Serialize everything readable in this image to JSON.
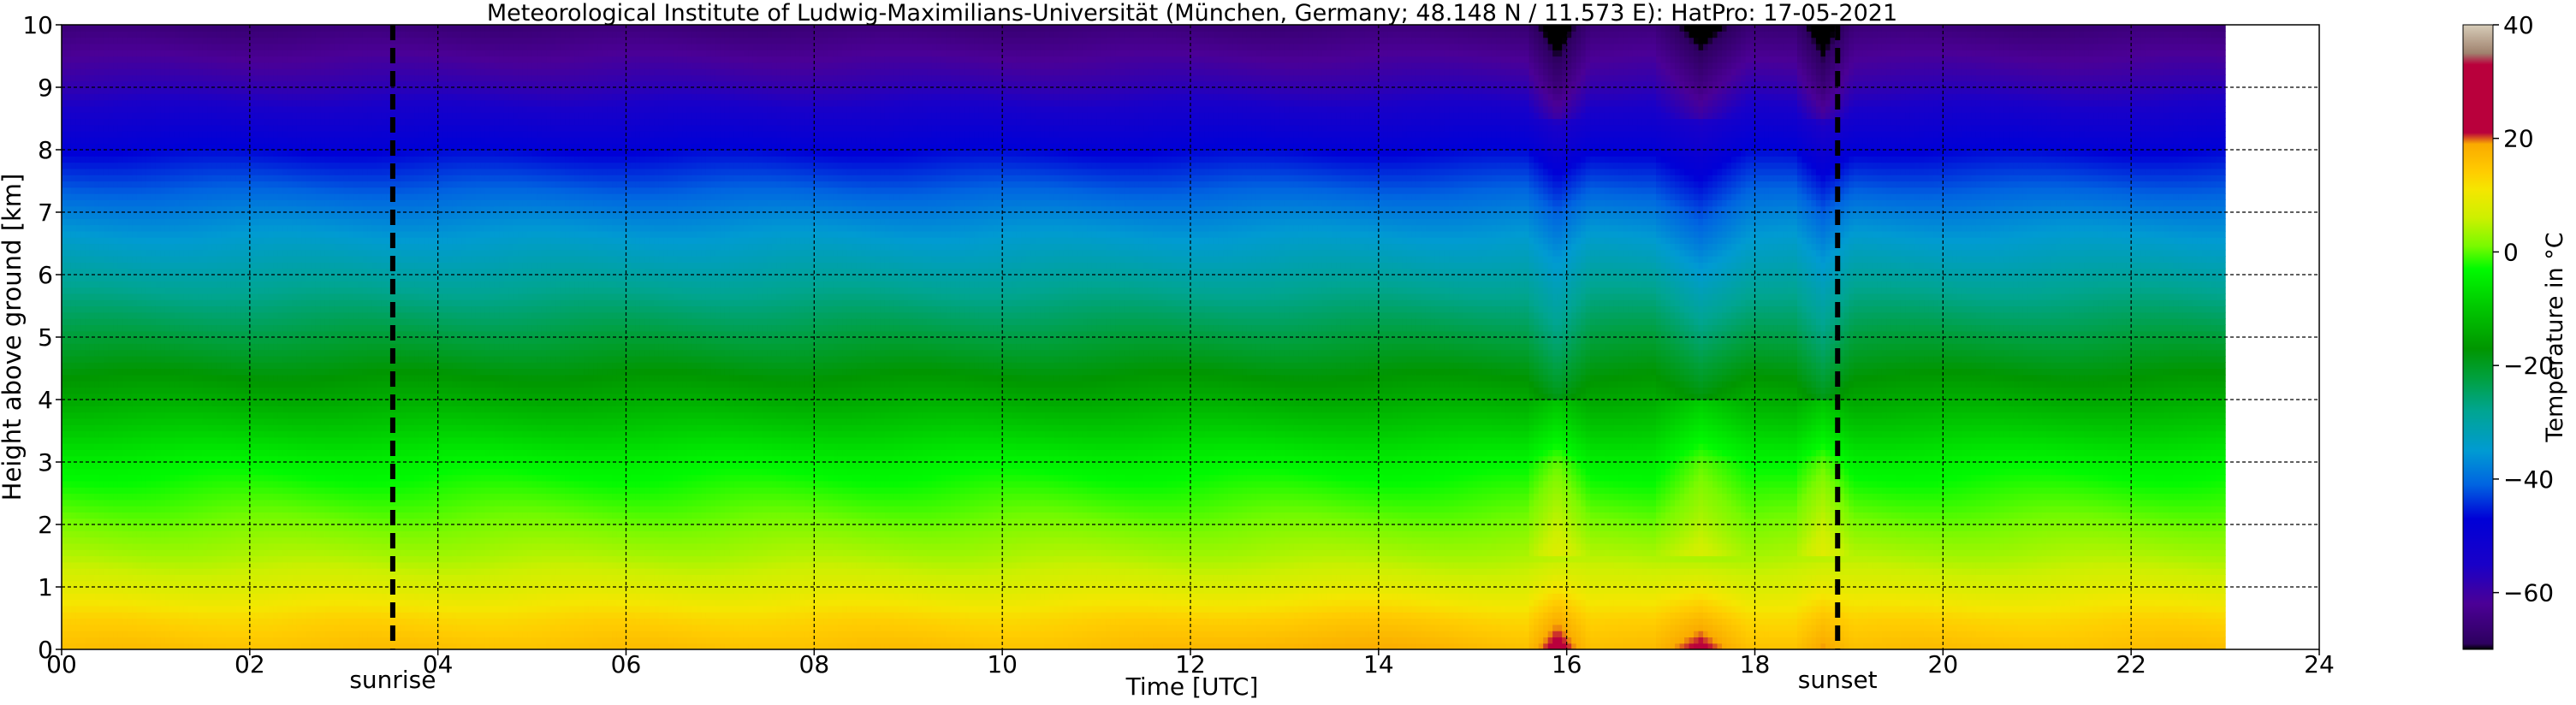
{
  "chart_data": {
    "type": "heatmap",
    "title": "Meteorological Institute of Ludwig-Maximilians-Universität (München, Germany; 48.148 N / 11.573 E):    HatPro: 17-05-2021",
    "xlabel": "Time [UTC]",
    "ylabel": "Height above ground [km]",
    "xlim": [
      0,
      24
    ],
    "ylim": [
      0,
      10
    ],
    "x_ticks": [
      "00",
      "02",
      "04",
      "06",
      "08",
      "10",
      "12",
      "14",
      "16",
      "18",
      "20",
      "22",
      "24"
    ],
    "y_ticks": [
      "0",
      "1",
      "2",
      "3",
      "4",
      "5",
      "6",
      "7",
      "8",
      "9",
      "10"
    ],
    "grid": true,
    "data_end_utc": 23.0,
    "annotations": [
      {
        "label": "sunrise",
        "x": 3.52
      },
      {
        "label": "sunset",
        "x": 18.88
      }
    ],
    "colorbar": {
      "label": "Temperature in $^\\circ$C",
      "range": [
        -70,
        40
      ],
      "ticks": [
        "40",
        "20",
        "0",
        "−20",
        "−40",
        "−60"
      ],
      "tick_values": [
        40,
        20,
        0,
        -20,
        -40,
        -60
      ]
    },
    "temperature_profile": {
      "heights_km": [
        0,
        0.5,
        1,
        1.5,
        2,
        3,
        4,
        5,
        6,
        7,
        8,
        9,
        10
      ],
      "temperature_c": [
        16,
        13,
        8,
        4,
        1,
        -4,
        -14,
        -22,
        -30,
        -38,
        -47,
        -58,
        -66
      ]
    },
    "events": [
      {
        "start": 15.75,
        "end": 16.05,
        "surface_peak_c": 24
      },
      {
        "start": 17.1,
        "end": 17.75,
        "surface_peak_c": 22
      },
      {
        "start": 18.6,
        "end": 18.85,
        "surface_peak_c": 20
      }
    ],
    "colors": {
      "accent_warm": "#b5003f",
      "accent_cold": "#0000cc",
      "grid": "#000000"
    }
  }
}
